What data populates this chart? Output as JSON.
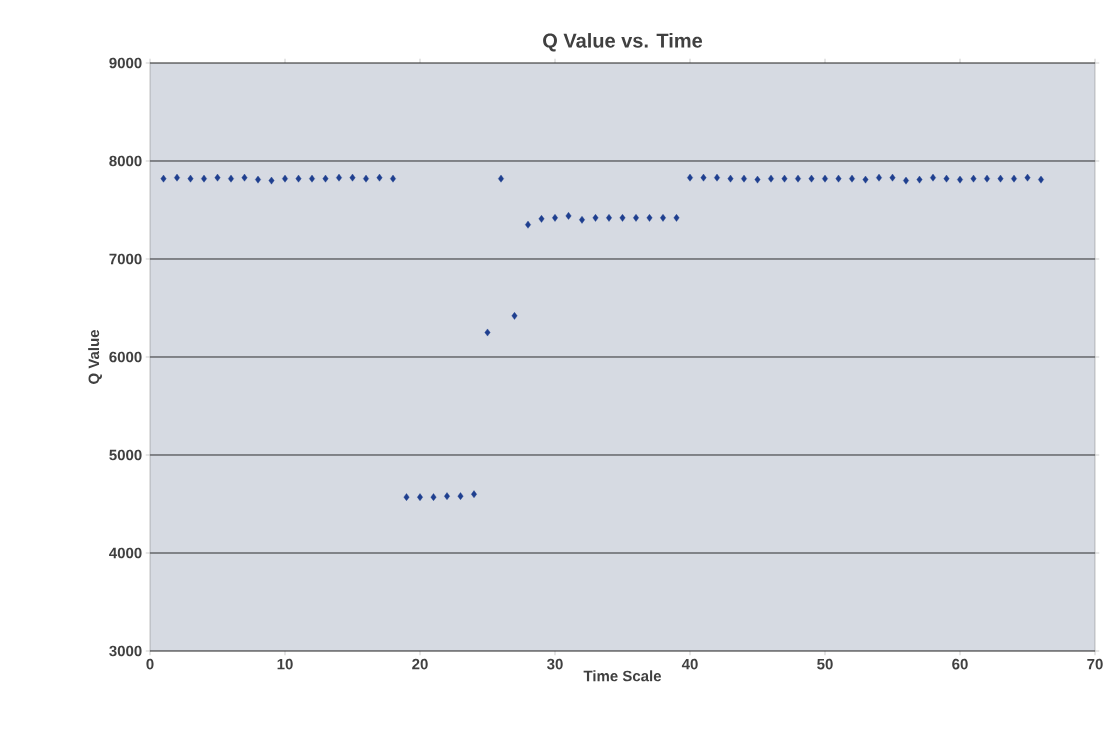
{
  "chart_data": {
    "type": "scatter",
    "title": "Q Value vs. Time",
    "xlabel": "Time Scale",
    "ylabel": "Q Value",
    "x": [
      1,
      2,
      3,
      4,
      5,
      6,
      7,
      8,
      9,
      10,
      11,
      12,
      13,
      14,
      15,
      16,
      17,
      18,
      19,
      20,
      21,
      22,
      23,
      24,
      25,
      26,
      27,
      28,
      29,
      30,
      31,
      32,
      33,
      34,
      35,
      36,
      37,
      38,
      39,
      40,
      41,
      42,
      43,
      44,
      45,
      46,
      47,
      48,
      49,
      50,
      51,
      52,
      53,
      54,
      55,
      56,
      57,
      58,
      59,
      60,
      61,
      62,
      63,
      64,
      65,
      66
    ],
    "series": [
      {
        "color": "#1f3f8f",
        "values": [
          7820,
          7830,
          7820,
          7820,
          7830,
          7820,
          7830,
          7810,
          7800,
          7820,
          7820,
          7820,
          7820,
          7830,
          7830,
          7820,
          7830,
          7820,
          4570,
          4570,
          4570,
          4580,
          4580,
          4600,
          6250,
          7820,
          6420,
          7350,
          7410,
          7420,
          7440,
          7400,
          7420,
          7420,
          7420,
          7420,
          7420,
          7420,
          7420,
          7830,
          7830,
          7830,
          7820,
          7820,
          7810,
          7820,
          7820,
          7820,
          7820,
          7820,
          7820,
          7820,
          7810,
          7830,
          7830,
          7800,
          7810,
          7830,
          7820,
          7810,
          7820,
          7820,
          7820,
          7820,
          7830,
          7810
        ]
      }
    ],
    "xlim": [
      0,
      70
    ],
    "xticks": [
      0,
      10,
      20,
      30,
      40,
      50,
      60,
      70
    ],
    "ylim": [
      3000,
      9000
    ],
    "yticks": [
      3000,
      4000,
      5000,
      6000,
      7000,
      8000,
      9000
    ],
    "grid": "y",
    "marker": "diamond"
  }
}
